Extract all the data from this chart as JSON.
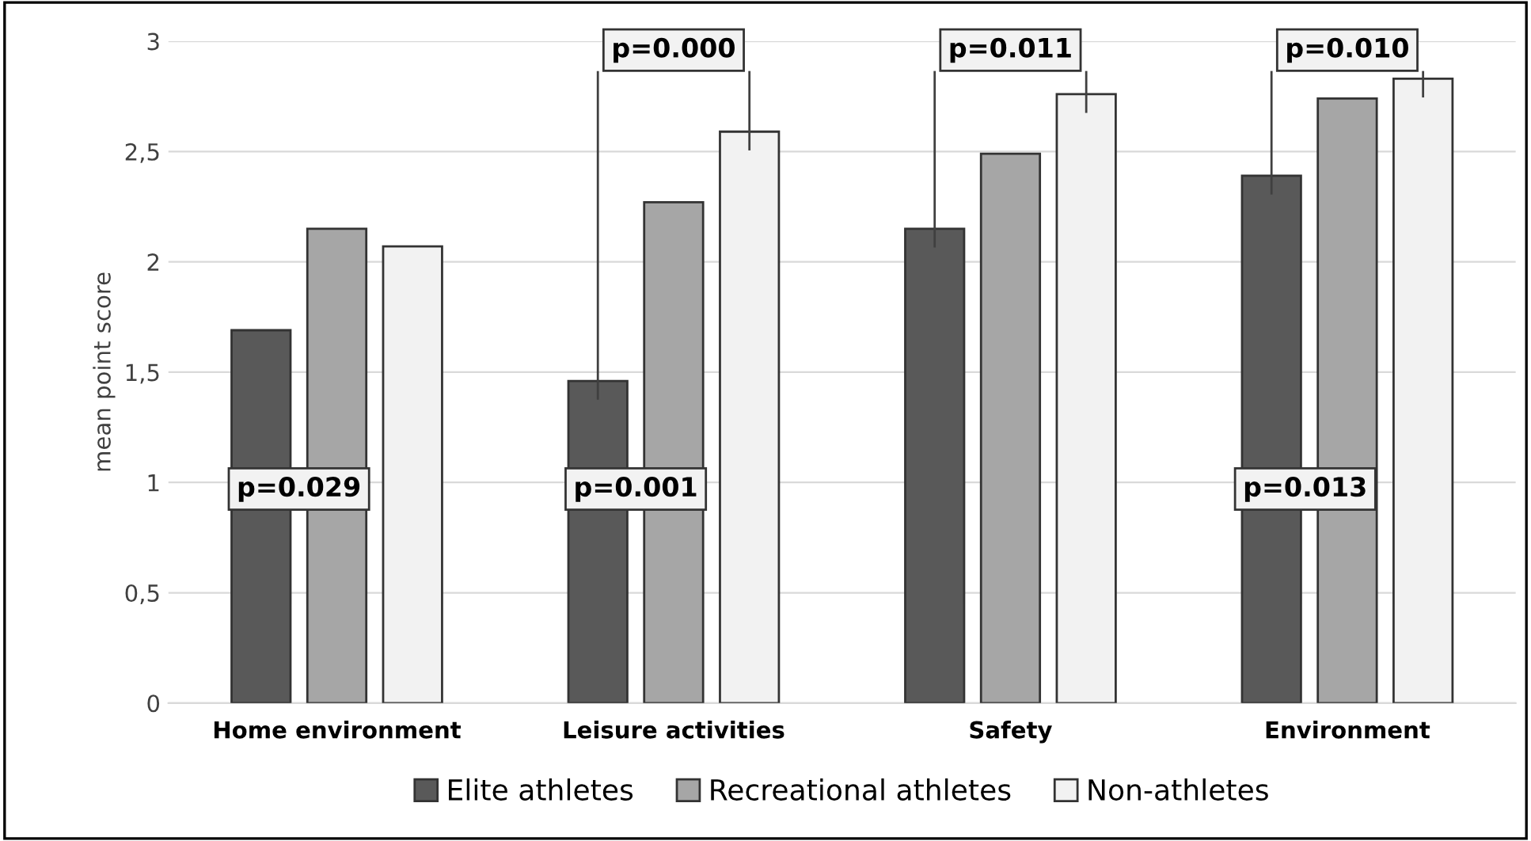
{
  "chart_data": {
    "type": "bar",
    "ylabel": "mean point score",
    "categories": [
      "Home environment",
      "Leisure activities",
      "Safety",
      "Environment"
    ],
    "series": [
      {
        "name": "Elite athletes",
        "color": "#595959",
        "values": [
          1.69,
          1.46,
          2.15,
          2.39
        ]
      },
      {
        "name": "Recreational athletes",
        "color": "#a6a6a6",
        "values": [
          2.15,
          2.27,
          2.49,
          2.74
        ]
      },
      {
        "name": "Non-athletes",
        "color": "#f2f2f2",
        "values": [
          2.07,
          2.59,
          2.76,
          2.83
        ]
      }
    ],
    "ylim": [
      0,
      3
    ],
    "yticks": [
      0,
      {
        "value": 0.5,
        "label": "0,5"
      },
      1,
      {
        "value": 1.5,
        "label": "1,5"
      },
      2,
      {
        "value": 2.5,
        "label": "2,5"
      },
      3
    ],
    "grid": "y",
    "legend": "bottom",
    "annotations": [
      "p=0.000",
      "p=0.011",
      "p=0.010",
      "p=0.029",
      "p=0.001",
      "p=0.013"
    ]
  }
}
